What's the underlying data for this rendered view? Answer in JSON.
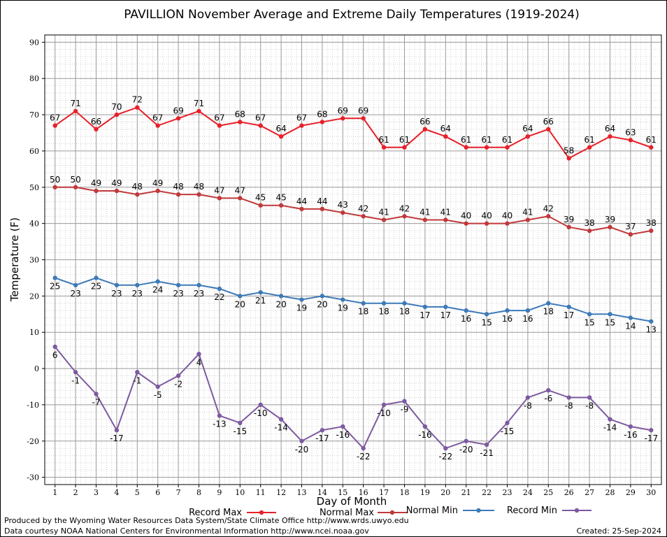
{
  "chart_data": {
    "type": "line",
    "title": "PAVILLION November Average and Extreme Daily Temperatures (1919-2024)",
    "xlabel": "Day of Month",
    "ylabel": "Temperature (F)",
    "x": [
      1,
      2,
      3,
      4,
      5,
      6,
      7,
      8,
      9,
      10,
      11,
      12,
      13,
      14,
      15,
      16,
      17,
      18,
      19,
      20,
      21,
      22,
      23,
      24,
      25,
      26,
      27,
      28,
      29,
      30
    ],
    "xlim": [
      0.5,
      30.5
    ],
    "ylim": [
      -32,
      92
    ],
    "yticks": [
      -30,
      -20,
      -10,
      0,
      10,
      20,
      30,
      40,
      50,
      60,
      70,
      80,
      90
    ],
    "grid": true,
    "legend_position": "bottom",
    "series": [
      {
        "name": "Record Max",
        "color": "#e8202a",
        "label_side": "above",
        "values": [
          67,
          71,
          66,
          70,
          72,
          67,
          69,
          71,
          67,
          68,
          67,
          64,
          67,
          68,
          69,
          69,
          61,
          61,
          66,
          64,
          61,
          61,
          61,
          64,
          66,
          58,
          61,
          64,
          63,
          61
        ]
      },
      {
        "name": "Normal Max",
        "color": "#c0393b",
        "label_side": "above",
        "values": [
          50,
          50,
          49,
          49,
          48,
          49,
          48,
          48,
          47,
          47,
          45,
          45,
          44,
          44,
          43,
          42,
          41,
          42,
          41,
          41,
          40,
          40,
          40,
          41,
          42,
          39,
          38,
          39,
          37,
          38
        ]
      },
      {
        "name": "Normal Min",
        "color": "#3d7ab8",
        "label_side": "below",
        "values": [
          25,
          23,
          25,
          23,
          23,
          24,
          23,
          23,
          22,
          20,
          21,
          20,
          19,
          20,
          19,
          18,
          18,
          18,
          17,
          17,
          16,
          15,
          16,
          16,
          18,
          17,
          15,
          15,
          14,
          13
        ]
      },
      {
        "name": "Record Min",
        "color": "#7d5aa0",
        "label_side": "below",
        "values": [
          6,
          -1,
          -7,
          -17,
          -1,
          -5,
          -2,
          4,
          -13,
          -15,
          -10,
          -14,
          -20,
          -17,
          -16,
          -22,
          -10,
          -9,
          -16,
          -22,
          -20,
          -21,
          -15,
          -8,
          -6,
          -8,
          -8,
          -14,
          -16,
          -17
        ]
      }
    ]
  },
  "footer": {
    "line1": "Produced by the Wyoming Water Resources Data System/State Climate Office http://www.wrds.uwyo.edu",
    "line2": "Data courtesy NOAA National Centers for Environmental Information http://www.ncei.noaa.gov",
    "created": "Created:  25-Sep-2024"
  }
}
